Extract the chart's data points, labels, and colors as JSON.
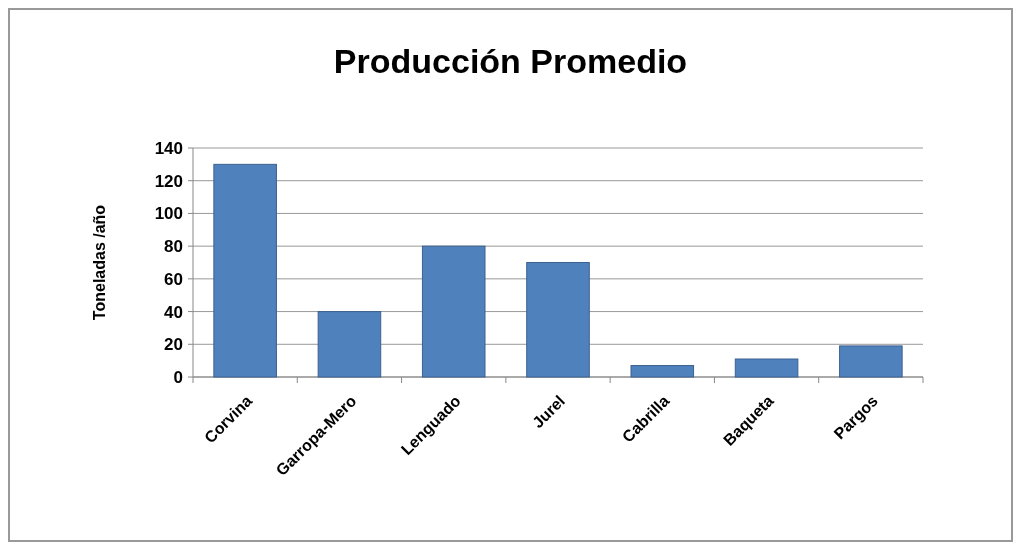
{
  "chart_data": {
    "type": "bar",
    "title": "Producción Promedio",
    "ylabel": "Toneladas  /año",
    "categories": [
      "Corvina",
      "Garropa-Mero",
      "Lenguado",
      "Jurel",
      "Cabrilla",
      "Baqueta",
      "Pargos"
    ],
    "values": [
      130,
      40,
      80,
      70,
      7,
      11,
      19
    ],
    "color": "#4f81bd",
    "ylim": [
      0,
      140
    ],
    "yticks": [
      0,
      20,
      40,
      60,
      80,
      100,
      120,
      140
    ],
    "grid": "y"
  }
}
